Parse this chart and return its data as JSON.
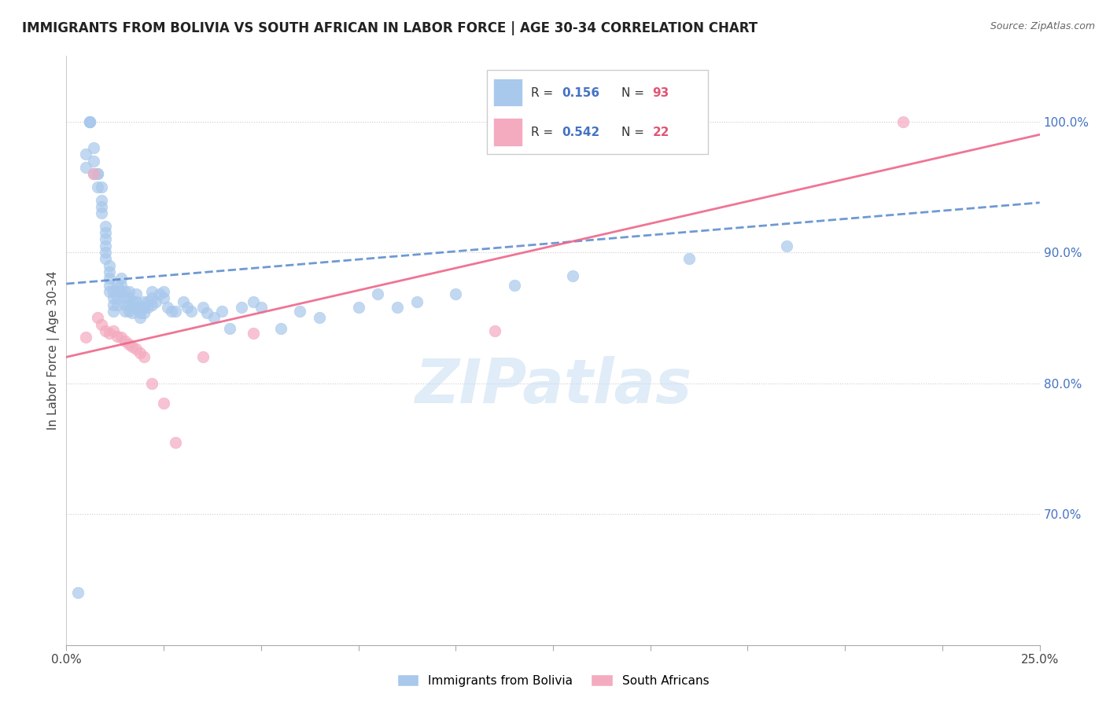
{
  "title": "IMMIGRANTS FROM BOLIVIA VS SOUTH AFRICAN IN LABOR FORCE | AGE 30-34 CORRELATION CHART",
  "source": "Source: ZipAtlas.com",
  "ylabel": "In Labor Force | Age 30-34",
  "ytick_labels": [
    "100.0%",
    "90.0%",
    "80.0%",
    "70.0%"
  ],
  "ytick_values": [
    1.0,
    0.9,
    0.8,
    0.7
  ],
  "xlim": [
    0.0,
    0.25
  ],
  "ylim": [
    0.6,
    1.05
  ],
  "watermark": "ZIPatlas",
  "bolivia_color": "#a8c8ec",
  "sa_color": "#f4aabf",
  "bolivia_line_color": "#5588cc",
  "sa_line_color": "#ee6688",
  "bolivia_R": "0.156",
  "bolivia_N": "93",
  "sa_R": "0.542",
  "sa_N": "22",
  "bolivia_scatter_x": [
    0.003,
    0.005,
    0.005,
    0.006,
    0.006,
    0.006,
    0.007,
    0.007,
    0.007,
    0.008,
    0.008,
    0.008,
    0.009,
    0.009,
    0.009,
    0.009,
    0.01,
    0.01,
    0.01,
    0.01,
    0.01,
    0.01,
    0.011,
    0.011,
    0.011,
    0.011,
    0.011,
    0.012,
    0.012,
    0.012,
    0.012,
    0.013,
    0.013,
    0.013,
    0.013,
    0.014,
    0.014,
    0.014,
    0.015,
    0.015,
    0.015,
    0.015,
    0.016,
    0.016,
    0.016,
    0.016,
    0.017,
    0.017,
    0.017,
    0.018,
    0.018,
    0.018,
    0.019,
    0.019,
    0.019,
    0.02,
    0.02,
    0.02,
    0.021,
    0.021,
    0.022,
    0.022,
    0.022,
    0.023,
    0.024,
    0.025,
    0.025,
    0.026,
    0.027,
    0.028,
    0.03,
    0.031,
    0.032,
    0.035,
    0.036,
    0.038,
    0.04,
    0.042,
    0.045,
    0.048,
    0.05,
    0.055,
    0.06,
    0.065,
    0.075,
    0.08,
    0.085,
    0.09,
    0.1,
    0.115,
    0.13,
    0.16,
    0.185
  ],
  "bolivia_scatter_y": [
    0.64,
    0.975,
    0.965,
    1.0,
    1.0,
    1.0,
    0.98,
    0.97,
    0.96,
    0.96,
    0.96,
    0.95,
    0.95,
    0.94,
    0.935,
    0.93,
    0.92,
    0.915,
    0.91,
    0.905,
    0.9,
    0.895,
    0.89,
    0.885,
    0.88,
    0.875,
    0.87,
    0.87,
    0.865,
    0.86,
    0.855,
    0.875,
    0.87,
    0.865,
    0.86,
    0.88,
    0.875,
    0.87,
    0.87,
    0.865,
    0.86,
    0.855,
    0.87,
    0.865,
    0.86,
    0.855,
    0.862,
    0.858,
    0.854,
    0.868,
    0.862,
    0.858,
    0.858,
    0.854,
    0.85,
    0.862,
    0.858,
    0.854,
    0.862,
    0.858,
    0.87,
    0.865,
    0.86,
    0.862,
    0.868,
    0.87,
    0.865,
    0.858,
    0.855,
    0.855,
    0.862,
    0.858,
    0.855,
    0.858,
    0.854,
    0.85,
    0.855,
    0.842,
    0.858,
    0.862,
    0.858,
    0.842,
    0.855,
    0.85,
    0.858,
    0.868,
    0.858,
    0.862,
    0.868,
    0.875,
    0.882,
    0.895,
    0.905
  ],
  "sa_scatter_x": [
    0.005,
    0.007,
    0.008,
    0.009,
    0.01,
    0.011,
    0.012,
    0.013,
    0.014,
    0.015,
    0.016,
    0.017,
    0.018,
    0.019,
    0.02,
    0.022,
    0.025,
    0.028,
    0.035,
    0.048,
    0.11,
    0.215
  ],
  "sa_scatter_y": [
    0.835,
    0.96,
    0.85,
    0.845,
    0.84,
    0.838,
    0.84,
    0.836,
    0.835,
    0.832,
    0.83,
    0.828,
    0.826,
    0.823,
    0.82,
    0.8,
    0.785,
    0.755,
    0.82,
    0.838,
    0.84,
    1.0
  ],
  "bolivia_trend_x": [
    0.0,
    0.25
  ],
  "bolivia_trend_y": [
    0.876,
    0.938
  ],
  "sa_trend_x": [
    0.0,
    0.25
  ],
  "sa_trend_y": [
    0.82,
    0.99
  ]
}
